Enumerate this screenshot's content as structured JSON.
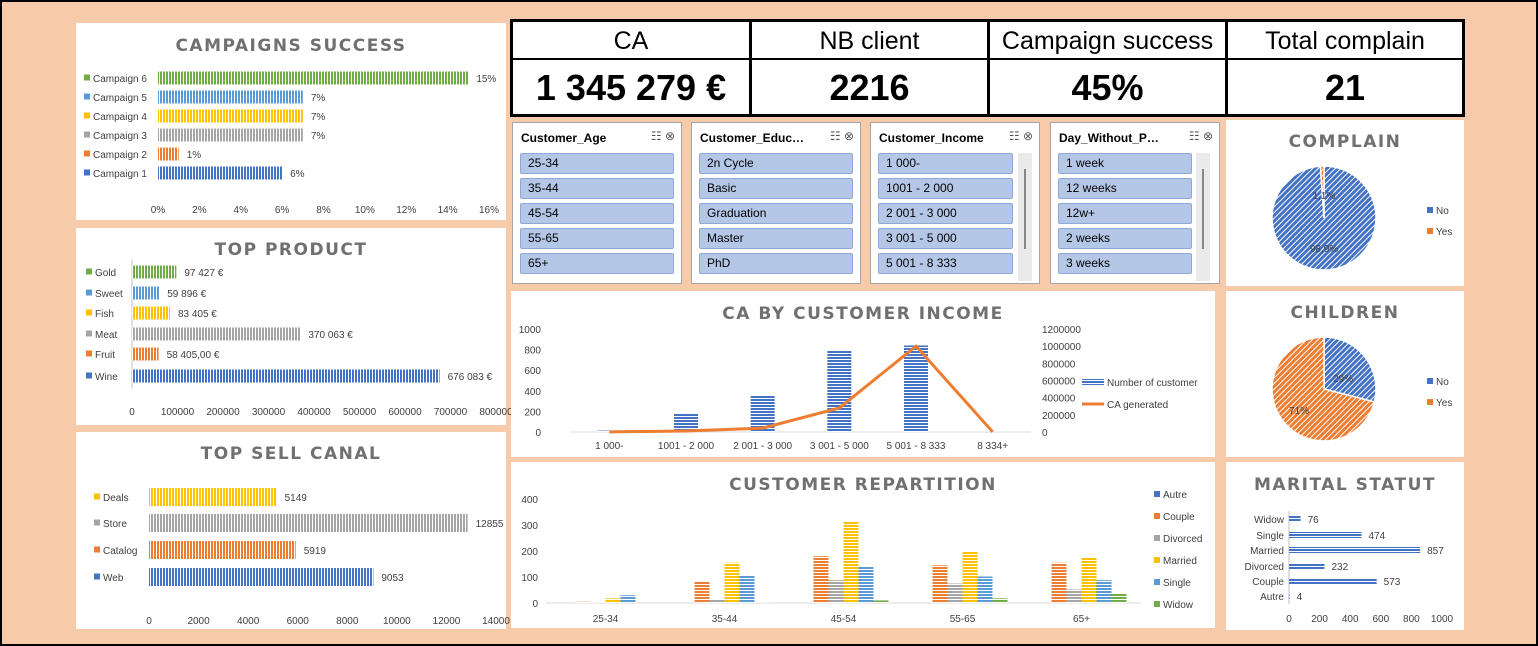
{
  "colors": {
    "background": "#f7cbaa",
    "blue": "#4472c4",
    "orange": "#ed7d31",
    "grey": "#a5a5a5",
    "yellow": "#ffc000",
    "lightblue": "#5b9bd5",
    "green": "#70ad47"
  },
  "kpis": [
    {
      "label": "CA",
      "value": "1 345 279 €"
    },
    {
      "label": "NB client",
      "value": "2216"
    },
    {
      "label": "Campaign success",
      "value": "45%"
    },
    {
      "label": "Total complain",
      "value": "21"
    }
  ],
  "slicers": [
    {
      "title": "Customer_Age",
      "items": [
        "25-34",
        "35-44",
        "45-54",
        "55-65",
        "65+"
      ],
      "scroll": false
    },
    {
      "title": "Customer_Education",
      "items": [
        "2n Cycle",
        "Basic",
        "Graduation",
        "Master",
        "PhD"
      ],
      "scroll": false
    },
    {
      "title": "Customer_Income",
      "items": [
        "1 000-",
        "1001 - 2 000",
        "2 001 - 3 000",
        "3 001 - 5 000",
        "5 001 - 8 333"
      ],
      "scroll": true
    },
    {
      "title": "Day_Without_Purchase",
      "items": [
        "1 week",
        "12 weeks",
        "12w+",
        "2 weeks",
        "3 weeks"
      ],
      "scroll": true
    }
  ],
  "chart_data": [
    {
      "id": "campaigns",
      "type": "bar",
      "orientation": "horizontal",
      "title": "CAMPAIGNS SUCCESS",
      "categories": [
        "Campaign 6",
        "Campaign 5",
        "Campaign 4",
        "Campaign 3",
        "Campaign 2",
        "Campaign 1"
      ],
      "values": [
        15,
        7,
        7,
        7,
        1,
        6
      ],
      "labels": [
        "15%",
        "7%",
        "7%",
        "7%",
        "1%",
        "6%"
      ],
      "colors": [
        "#70ad47",
        "#5b9bd5",
        "#ffc000",
        "#a5a5a5",
        "#ed7d31",
        "#4472c4"
      ],
      "xlim": [
        0,
        16
      ],
      "ticks": [
        "0%",
        "2%",
        "4%",
        "6%",
        "8%",
        "10%",
        "12%",
        "14%",
        "16%"
      ],
      "legend": "left"
    },
    {
      "id": "product",
      "type": "bar",
      "orientation": "horizontal",
      "title": "TOP PRODUCT",
      "categories": [
        "Gold",
        "Sweet",
        "Fish",
        "Meat",
        "Fruit",
        "Wine"
      ],
      "values": [
        97427,
        59896,
        83405,
        370063,
        58405,
        676083
      ],
      "labels": [
        "97 427 €",
        "59 896 €",
        "83 405 €",
        "370 063 €",
        "58 405,00 €",
        "676 083 €"
      ],
      "colors": [
        "#70ad47",
        "#5b9bd5",
        "#ffc000",
        "#a5a5a5",
        "#ed7d31",
        "#4472c4"
      ],
      "xlim": [
        0,
        800000
      ],
      "ticks": [
        "0",
        "100000",
        "200000",
        "300000",
        "400000",
        "500000",
        "600000",
        "700000",
        "800000"
      ],
      "legend": "left"
    },
    {
      "id": "canal",
      "type": "bar",
      "orientation": "horizontal",
      "title": "TOP SELL CANAL",
      "categories": [
        "Deals",
        "Store",
        "Catalog",
        "Web"
      ],
      "values": [
        5149,
        12855,
        5919,
        9053
      ],
      "labels": [
        "5149",
        "12855",
        "5919",
        "9053"
      ],
      "colors": [
        "#ffc000",
        "#a5a5a5",
        "#ed7d31",
        "#4472c4"
      ],
      "xlim": [
        0,
        14000
      ],
      "ticks": [
        "0",
        "2000",
        "4000",
        "6000",
        "8000",
        "10000",
        "12000",
        "14000"
      ],
      "legend": "left"
    },
    {
      "id": "income",
      "type": "bar",
      "title": "CA BY CUSTOMER INCOME",
      "categories": [
        "1 000-",
        "1001 - 2 000",
        "2 001 - 3 000",
        "3 001 - 5 000",
        "5 001 - 8 333",
        "8 334+"
      ],
      "series": [
        {
          "name": "Number of customer",
          "type": "bar",
          "axis": "left",
          "values": [
            14,
            180,
            350,
            795,
            840,
            1
          ]
        },
        {
          "name": "CA generated",
          "type": "line",
          "axis": "right",
          "values": [
            1500,
            12000,
            45000,
            280000,
            1000000,
            2000
          ]
        }
      ],
      "ylim": [
        0,
        1000
      ],
      "yticks": [
        "0",
        "200",
        "400",
        "600",
        "800",
        "1000"
      ],
      "y2lim": [
        0,
        1200000
      ],
      "y2ticks": [
        "0",
        "200000",
        "400000",
        "600000",
        "800000",
        "1000000",
        "1200000"
      ],
      "legend": "right"
    },
    {
      "id": "repartition",
      "type": "bar",
      "title": "CUSTOMER REPARTITION",
      "categories": [
        "25-34",
        "35-44",
        "45-54",
        "55-65",
        "65+"
      ],
      "series": [
        {
          "name": "Autre",
          "values": [
            0,
            0,
            0,
            0,
            0
          ]
        },
        {
          "name": "Couple",
          "values": [
            5,
            83,
            180,
            145,
            155
          ]
        },
        {
          "name": "Divorced",
          "values": [
            1,
            12,
            88,
            75,
            52
          ]
        },
        {
          "name": "Married",
          "values": [
            18,
            155,
            312,
            200,
            175
          ]
        },
        {
          "name": "Single",
          "values": [
            30,
            105,
            140,
            102,
            88
          ]
        },
        {
          "name": "Widow",
          "values": [
            0,
            1,
            10,
            18,
            35
          ]
        }
      ],
      "ylim": [
        0,
        400
      ],
      "yticks": [
        "0",
        "100",
        "200",
        "300",
        "400"
      ],
      "legend": "right"
    },
    {
      "id": "complain",
      "type": "pie",
      "title": "COMPLAIN",
      "categories": [
        "No",
        "Yes"
      ],
      "values": [
        98.9,
        1.1
      ],
      "labels": [
        "98,9%",
        "1,1%"
      ],
      "legend": "right"
    },
    {
      "id": "children",
      "type": "pie",
      "title": "CHILDREN",
      "categories": [
        "No",
        "Yes"
      ],
      "values": [
        29,
        71
      ],
      "labels": [
        "29%",
        "71%"
      ],
      "legend": "right"
    },
    {
      "id": "marital",
      "type": "bar",
      "orientation": "horizontal",
      "title": "MARITAL STATUT",
      "categories": [
        "Widow",
        "Single",
        "Married",
        "Divorced",
        "Couple",
        "Autre"
      ],
      "values": [
        76,
        474,
        857,
        232,
        573,
        4
      ],
      "labels": [
        "76",
        "474",
        "857",
        "232",
        "573",
        "4"
      ],
      "xlim": [
        0,
        1000
      ],
      "ticks": [
        "0",
        "200",
        "400",
        "600",
        "800",
        "1000"
      ]
    }
  ]
}
